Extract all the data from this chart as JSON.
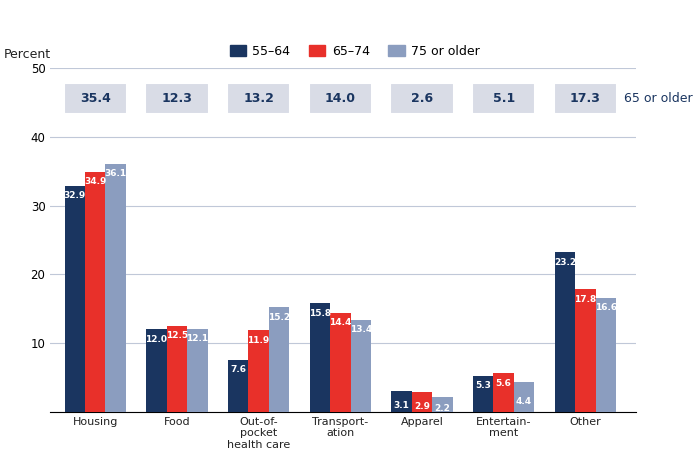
{
  "categories": [
    "Housing",
    "Food",
    "Out-of-\npocket\nhealth care",
    "Transport-\nation",
    "Apparel",
    "Entertain-\nment",
    "Other"
  ],
  "series": {
    "55-64": [
      32.9,
      12.0,
      7.6,
      15.8,
      3.1,
      5.3,
      23.2
    ],
    "65-74": [
      34.9,
      12.5,
      11.9,
      14.4,
      2.9,
      5.6,
      17.8
    ],
    "75+": [
      36.1,
      12.1,
      15.2,
      13.4,
      2.2,
      4.4,
      16.6
    ]
  },
  "colors": {
    "55-64": "#1a3560",
    "65-74": "#e8302a",
    "75+": "#8b9dbf"
  },
  "legend_labels": [
    "55–64",
    "65–74",
    "75 or older"
  ],
  "table_values": [
    "35.4",
    "12.3",
    "13.2",
    "14.0",
    "2.6",
    "5.1",
    "17.3"
  ],
  "table_label": "65 or older",
  "ylabel": "Percent",
  "ylim": [
    0,
    50
  ],
  "yticks": [
    0,
    10,
    20,
    30,
    40,
    50
  ],
  "bar_width": 0.25,
  "table_bg_color": "#d9dce6",
  "table_text_color": "#1a3560",
  "grid_color": "#c0c8d8"
}
